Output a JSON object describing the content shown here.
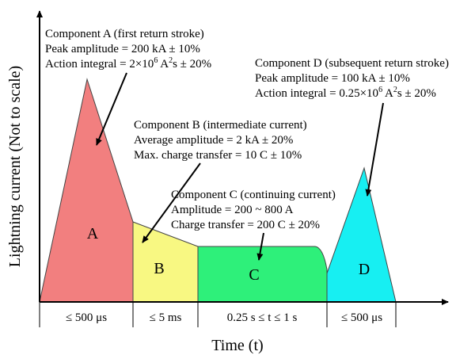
{
  "axes": {
    "y_title": "Lightning current (Not to scale)",
    "x_title": "Time (t)"
  },
  "regions": {
    "A": {
      "label": "A",
      "color": "#f27f7f"
    },
    "B": {
      "label": "B",
      "color": "#f8f882"
    },
    "C": {
      "label": "C",
      "color": "#2ef07a"
    },
    "D": {
      "label": "D",
      "color": "#17eff2"
    }
  },
  "annotations": {
    "component_a": {
      "title": "Component A (first return stroke)",
      "peak": "Peak amplitude = 200 kA ± 10%",
      "action_pre": "Action integral = 2×10",
      "action_exp": "6",
      "action_mid": " A",
      "action_sq": "2",
      "action_post": "s ± 20%"
    },
    "component_b": {
      "title": "Component B (intermediate current)",
      "average": "Average amplitude = 2 kA ± 20%",
      "charge": "Max. charge transfer = 10 C ± 10%"
    },
    "component_c": {
      "title": "Component C (continuing current)",
      "amplitude": "Amplitude = 200 ~ 800 A",
      "charge": "Charge transfer = 200 C ± 20%"
    },
    "component_d": {
      "title": "Component D (subsequent return stroke)",
      "peak": "Peak amplitude = 100 kA ± 10%",
      "action_pre": "Action integral = 0.25×10",
      "action_exp": "6",
      "action_mid": " A",
      "action_sq": "2",
      "action_post": "s ± 20%"
    }
  },
  "durations": [
    {
      "label": "≤ 500 μs"
    },
    {
      "label": "≤ 5 ms"
    },
    {
      "label": "0.25 s ≤ t ≤ 1 s"
    },
    {
      "label": "≤ 500 μs"
    }
  ]
}
